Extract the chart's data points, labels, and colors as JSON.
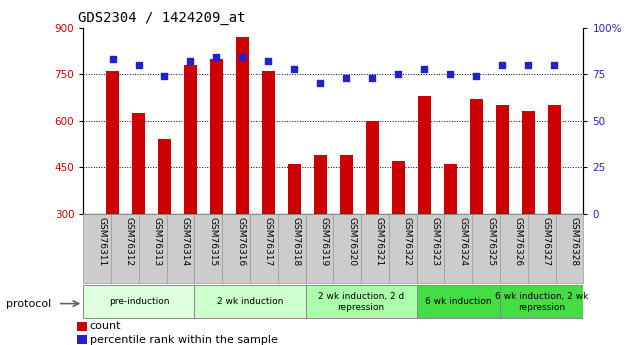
{
  "title": "GDS2304 / 1424209_at",
  "samples": [
    "GSM76311",
    "GSM76312",
    "GSM76313",
    "GSM76314",
    "GSM76315",
    "GSM76316",
    "GSM76317",
    "GSM76318",
    "GSM76319",
    "GSM76320",
    "GSM76321",
    "GSM76322",
    "GSM76323",
    "GSM76324",
    "GSM76325",
    "GSM76326",
    "GSM76327",
    "GSM76328"
  ],
  "counts": [
    760,
    625,
    540,
    780,
    800,
    870,
    760,
    460,
    490,
    490,
    600,
    470,
    680,
    460,
    670,
    650,
    630,
    650
  ],
  "percentiles": [
    83,
    80,
    74,
    82,
    84,
    84,
    82,
    78,
    70,
    73,
    73,
    75,
    78,
    75,
    74,
    80,
    80,
    80
  ],
  "left_ylim": [
    300,
    900
  ],
  "right_ylim": [
    0,
    100
  ],
  "left_yticks": [
    300,
    450,
    600,
    750,
    900
  ],
  "right_yticks": [
    0,
    25,
    50,
    75,
    100
  ],
  "bar_color": "#cc0000",
  "dot_color": "#2222cc",
  "bar_bottom": 300,
  "protocols": [
    {
      "label": "pre-induction",
      "start": 0,
      "end": 4,
      "color": "#ddffdd"
    },
    {
      "label": "2 wk induction",
      "start": 4,
      "end": 8,
      "color": "#ccffcc"
    },
    {
      "label": "2 wk induction, 2 d\nrepression",
      "start": 8,
      "end": 12,
      "color": "#aaffaa"
    },
    {
      "label": "6 wk induction",
      "start": 12,
      "end": 15,
      "color": "#44dd44"
    },
    {
      "label": "6 wk induction, 2 wk\nrepression",
      "start": 15,
      "end": 18,
      "color": "#44dd44"
    }
  ],
  "dotted_lines": [
    450,
    600,
    750
  ],
  "background_color": "#ffffff",
  "title_fontsize": 10,
  "tick_fontsize": 7.5
}
